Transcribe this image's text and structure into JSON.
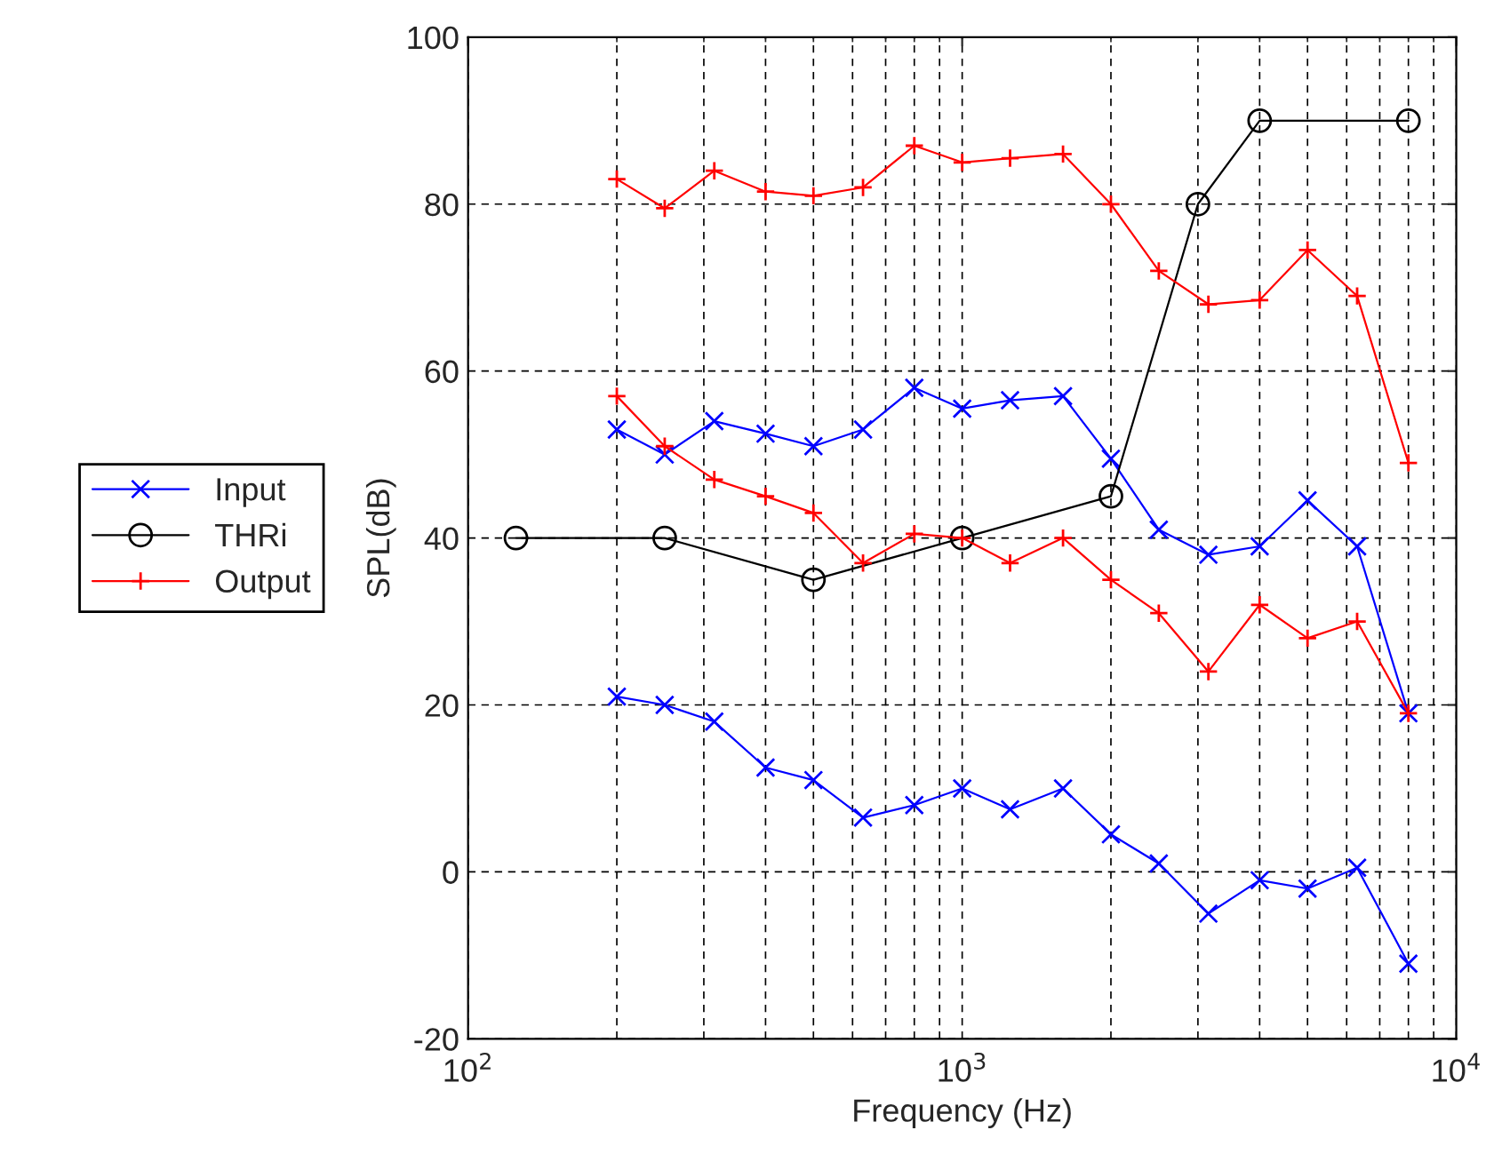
{
  "chart_data": {
    "type": "line",
    "xlabel": "Frequency (Hz)",
    "ylabel": "SPL(dB)",
    "log": "x",
    "xlim": [
      100,
      10000
    ],
    "xticks": [
      {
        "value": 100,
        "label": "10$^{2}$"
      },
      {
        "value": 1000,
        "label": "10$^{3}$"
      },
      {
        "value": 10000,
        "label": "10$^{4}$"
      }
    ],
    "ylim": [
      -20,
      100
    ],
    "yticks": [
      -20,
      0,
      20,
      40,
      60,
      80,
      100
    ],
    "grid": true,
    "legend": "left",
    "line_style": "solid",
    "series": [
      {
        "name": "Input",
        "color": "#0000ff",
        "marker": "x",
        "x": [
          200,
          250,
          315,
          400,
          500,
          630,
          800,
          1000,
          1250,
          1600,
          2000,
          2500,
          3150,
          4000,
          5000,
          6300,
          8000
        ],
        "values": [
          53,
          50,
          54,
          52.5,
          51,
          53,
          58,
          55.5,
          56.5,
          57,
          49.5,
          41,
          38,
          39,
          44.5,
          39,
          19
        ]
      },
      {
        "name": "THRi",
        "color": "#000000",
        "marker": "circle",
        "x": [
          125,
          250,
          500,
          1000,
          2000,
          3000,
          4000,
          8000
        ],
        "values": [
          40,
          40,
          35,
          40,
          45,
          80,
          90,
          90
        ]
      },
      {
        "name": "Output",
        "color": "#ff0000",
        "marker": "cross",
        "x": [
          200,
          250,
          315,
          400,
          500,
          630,
          800,
          1000,
          1250,
          1600,
          2000,
          2500,
          3150,
          4000,
          5000,
          6300,
          8000
        ],
        "values": [
          83,
          79.5,
          84,
          81.5,
          81,
          82,
          87,
          85,
          85.5,
          86,
          80,
          72,
          68,
          68.5,
          74.5,
          69,
          49
        ]
      },
      {
        "color": "#0000ff",
        "marker": "x",
        "x": [
          200,
          250,
          315,
          400,
          500,
          630,
          800,
          1000,
          1250,
          1600,
          2000,
          2500,
          3150,
          4000,
          5000,
          6300,
          8000
        ],
        "values": [
          21,
          20,
          18,
          12.5,
          11,
          6.5,
          8,
          10,
          7.5,
          10,
          4.5,
          1,
          -5,
          -1,
          -2,
          0.5,
          -11
        ]
      },
      {
        "color": "#ff0000",
        "marker": "cross",
        "x": [
          200,
          250,
          315,
          400,
          500,
          630,
          800,
          1000,
          1250,
          1600,
          2000,
          2500,
          3150,
          4000,
          5000,
          6300,
          8000
        ],
        "values": [
          57,
          51,
          47,
          45,
          43,
          37,
          40.5,
          40,
          37,
          40,
          35,
          31,
          24,
          32,
          28,
          30,
          19
        ]
      }
    ]
  }
}
